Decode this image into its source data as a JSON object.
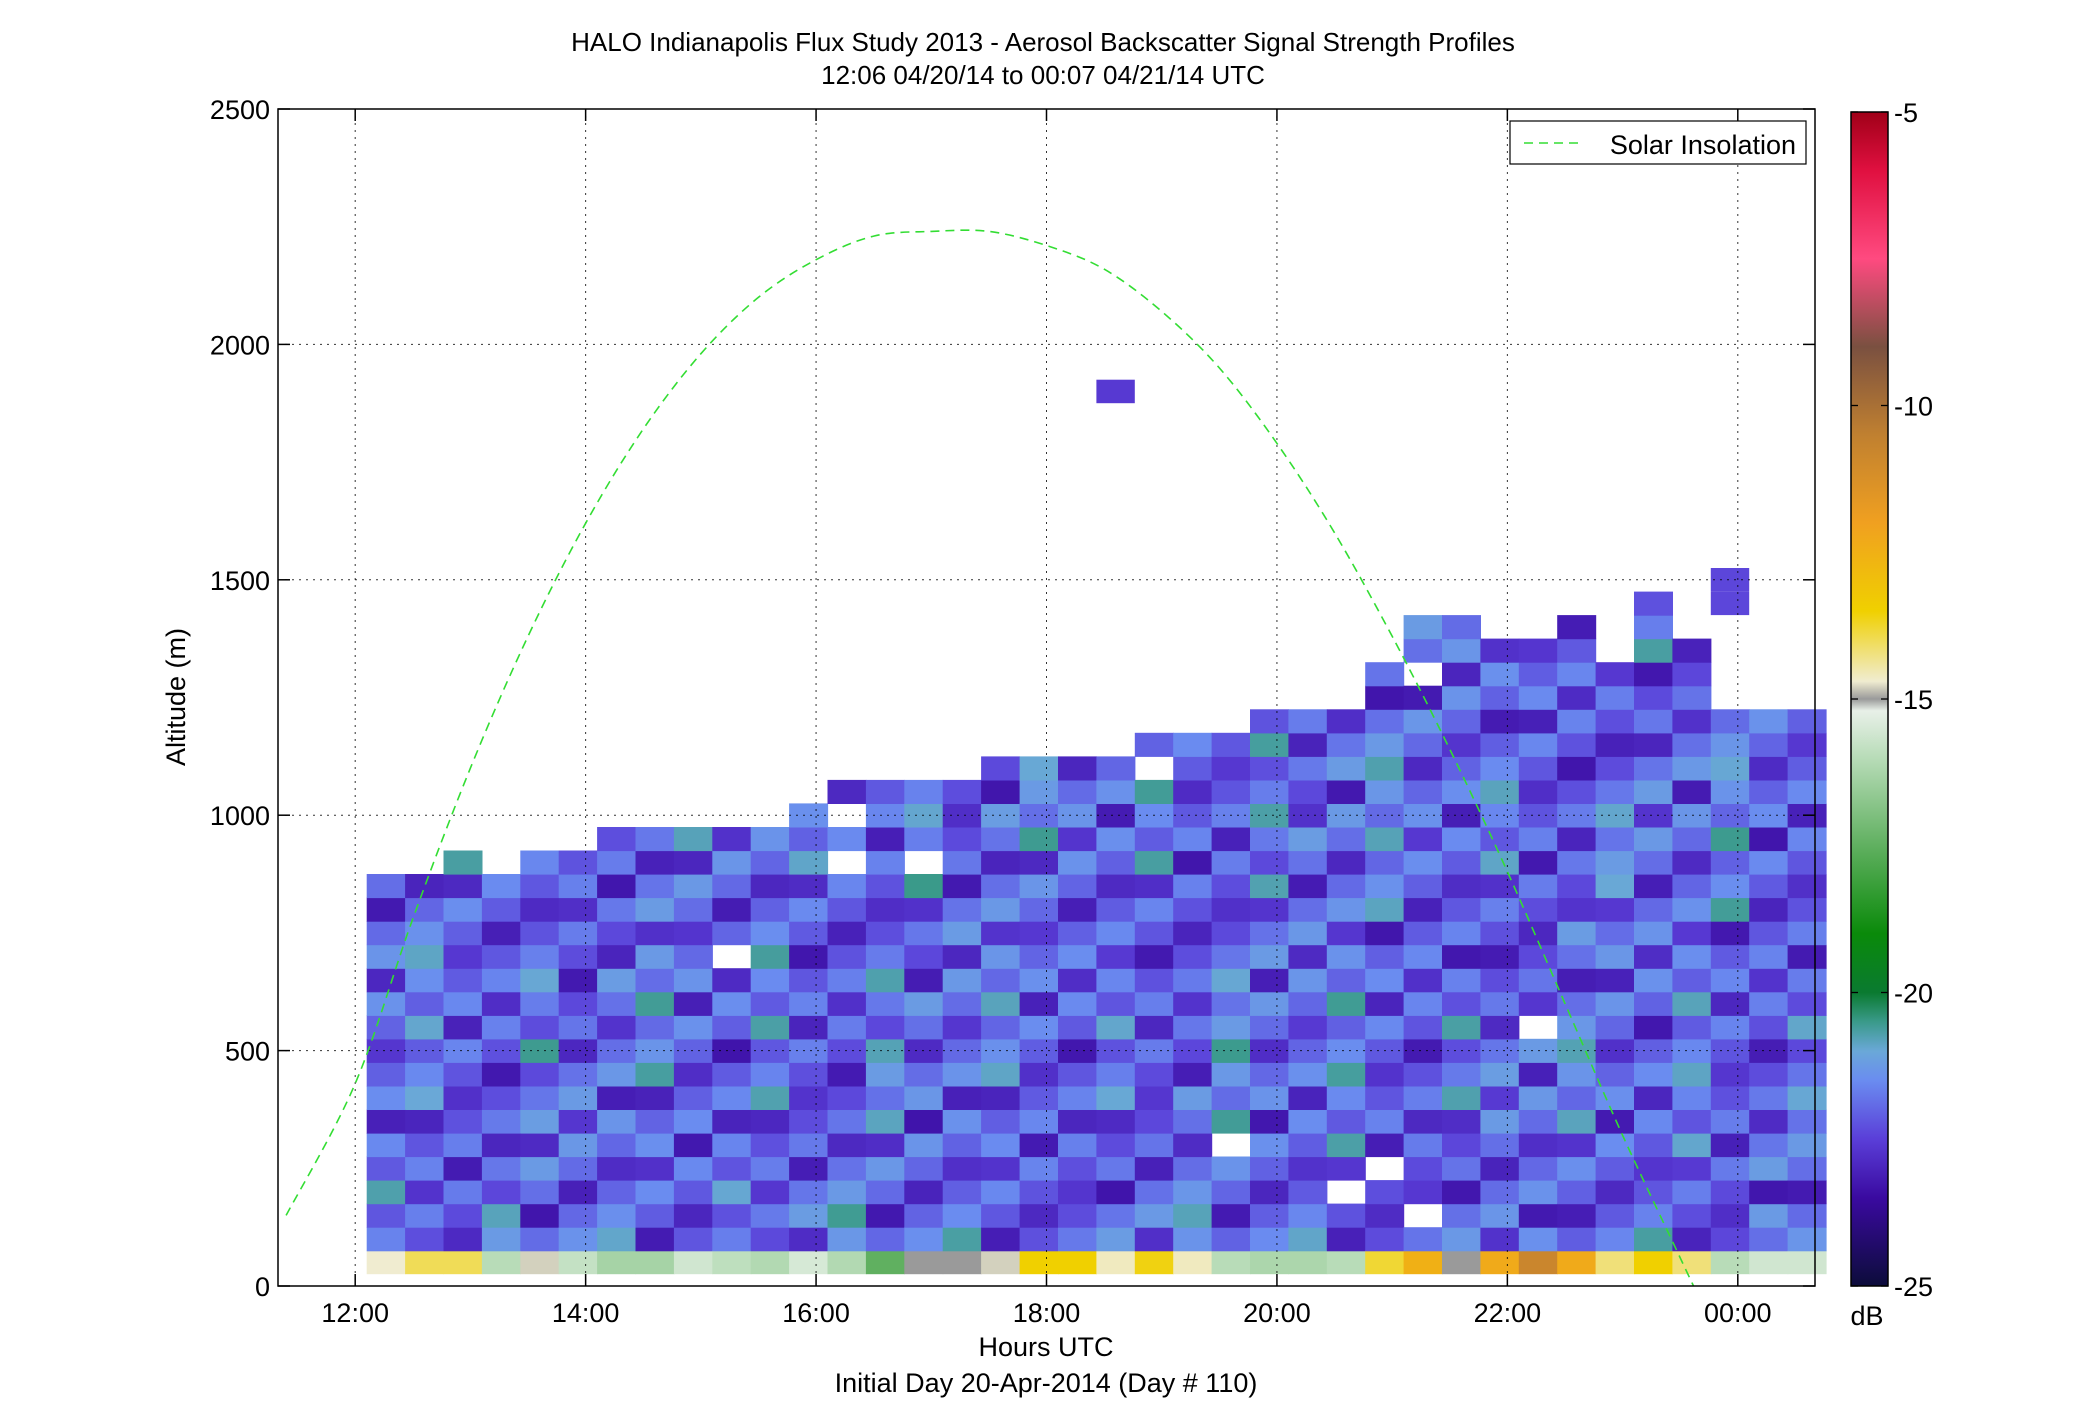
{
  "chart_data": {
    "type": "heatmap",
    "title": "HALO Indianapolis Flux Study 2013 - Aerosol Backscatter Signal Strength Profiles",
    "subtitle": "12:06 04/20/14 to 00:07 04/21/14  UTC",
    "xlabel": "Hours UTC",
    "xlabel2": "Initial Day 20-Apr-2014 (Day # 110)",
    "ylabel": "Altitude (m)",
    "x_tick_labels": [
      "12:00",
      "14:00",
      "16:00",
      "18:00",
      "20:00",
      "22:00",
      "00:00"
    ],
    "x_ticks_hours": [
      12,
      14,
      16,
      18,
      20,
      22,
      24
    ],
    "xlim_hours": [
      11.33,
      24.67
    ],
    "y_ticks": [
      0,
      500,
      1000,
      1500,
      2000,
      2500
    ],
    "ylim": [
      0,
      2500
    ],
    "grid": true,
    "legend": {
      "entries": [
        "Solar Insolation"
      ],
      "position": "top-right"
    },
    "colorbar": {
      "ticks": [
        -5,
        -10,
        -15,
        -20,
        -25
      ],
      "range": [
        -25,
        -5
      ],
      "unit": "dB",
      "stops": [
        {
          "v": -25,
          "c": "#0c0c3a"
        },
        {
          "v": -23.5,
          "c": "#3a0aa0"
        },
        {
          "v": -22.5,
          "c": "#5a3ed8"
        },
        {
          "v": -21.5,
          "c": "#6a8cf0"
        },
        {
          "v": -21,
          "c": "#6aa8d8"
        },
        {
          "v": -20.5,
          "c": "#3a9a8a"
        },
        {
          "v": -20,
          "c": "#0a7a30"
        },
        {
          "v": -19,
          "c": "#0a8a0a"
        },
        {
          "v": -17.5,
          "c": "#60b060"
        },
        {
          "v": -16,
          "c": "#b8dcb8"
        },
        {
          "v": -15.2,
          "c": "#e8f0e8"
        },
        {
          "v": -15,
          "c": "#9a9a9a"
        },
        {
          "v": -14.7,
          "c": "#f0ecd0"
        },
        {
          "v": -13.5,
          "c": "#f0d000"
        },
        {
          "v": -12,
          "c": "#f0a020"
        },
        {
          "v": -10.5,
          "c": "#c08030"
        },
        {
          "v": -9,
          "c": "#7a5040"
        },
        {
          "v": -7.5,
          "c": "#ff4a80"
        },
        {
          "v": -6,
          "c": "#e01040"
        },
        {
          "v": -5,
          "c": "#a00018"
        }
      ]
    },
    "grid_meta": {
      "x_start_hour": 12.1,
      "col_width_hours": 0.3333,
      "row0_bottom_m": 75,
      "row_height_m": 50
    },
    "columns": [
      {
        "top": 850,
        "surface": -14.7,
        "seed": 1
      },
      {
        "top": 850,
        "surface": -14.0,
        "seed": 2
      },
      {
        "top": 900,
        "surface": -14.0,
        "seed": 3
      },
      {
        "top": 900,
        "surface": -16.0,
        "seed": 4
      },
      {
        "top": 900,
        "surface": -14.8,
        "seed": 5
      },
      {
        "top": 900,
        "surface": -15.8,
        "seed": 6
      },
      {
        "top": 950,
        "surface": -16.3,
        "seed": 7
      },
      {
        "top": 950,
        "surface": -16.3,
        "seed": 8
      },
      {
        "top": 950,
        "surface": -15.6,
        "seed": 9
      },
      {
        "top": 950,
        "surface": -15.9,
        "seed": 10
      },
      {
        "top": 950,
        "surface": -16.1,
        "seed": 11
      },
      {
        "top": 1000,
        "surface": -15.5,
        "seed": 12
      },
      {
        "top": 1050,
        "surface": -16.1,
        "seed": 13
      },
      {
        "top": 1050,
        "surface": -17.5,
        "seed": 14
      },
      {
        "top": 1050,
        "surface": -15.0,
        "seed": 15
      },
      {
        "top": 1050,
        "surface": -15.0,
        "seed": 16
      },
      {
        "top": 1100,
        "surface": -14.8,
        "seed": 17
      },
      {
        "top": 1100,
        "surface": -13.5,
        "seed": 18
      },
      {
        "top": 1100,
        "surface": -13.5,
        "seed": 19
      },
      {
        "top": 1100,
        "surface": -14.6,
        "seed": 20
      },
      {
        "top": 1150,
        "surface": -13.6,
        "seed": 21
      },
      {
        "top": 1150,
        "surface": -14.6,
        "seed": 22
      },
      {
        "top": 1150,
        "surface": -16.0,
        "seed": 23
      },
      {
        "top": 1200,
        "surface": -16.2,
        "seed": 24
      },
      {
        "top": 1200,
        "surface": -16.2,
        "seed": 25
      },
      {
        "top": 1200,
        "surface": -16.0,
        "seed": 26
      },
      {
        "top": 1300,
        "surface": -13.8,
        "seed": 27
      },
      {
        "top": 1400,
        "surface": -12.5,
        "seed": 28
      },
      {
        "top": 1400,
        "surface": -15.0,
        "seed": 29
      },
      {
        "top": 1350,
        "surface": -12.3,
        "seed": 30
      },
      {
        "top": 1350,
        "surface": -10.8,
        "seed": 31
      },
      {
        "top": 1400,
        "surface": -12.3,
        "seed": 32
      },
      {
        "top": 1300,
        "surface": -14.2,
        "seed": 33
      },
      {
        "top": 1450,
        "surface": -13.5,
        "seed": 34
      },
      {
        "top": 1350,
        "surface": -14.2,
        "seed": 35
      },
      {
        "top": 1200,
        "surface": -16.0,
        "seed": 36
      },
      {
        "top": 1200,
        "surface": -15.6,
        "seed": 37
      },
      {
        "top": 1200,
        "surface": -15.6,
        "seed": 38
      }
    ],
    "gaps": [
      [
        3,
        16
      ],
      [
        3,
        24
      ],
      [
        9,
        12
      ],
      [
        12,
        16
      ],
      [
        12,
        18
      ],
      [
        14,
        16
      ],
      [
        16,
        21
      ],
      [
        16,
        22
      ],
      [
        20,
        20
      ],
      [
        21,
        22
      ],
      [
        22,
        4
      ],
      [
        25,
        2
      ],
      [
        27,
        1
      ],
      [
        30,
        9
      ],
      [
        30,
        26
      ],
      [
        26,
        3
      ],
      [
        27,
        24
      ],
      [
        25,
        23
      ]
    ],
    "extra_cells": [
      {
        "col": 19,
        "row": 36,
        "value": -22.6
      },
      {
        "col": 35,
        "row": 28,
        "value": -22.4
      },
      {
        "col": 35,
        "row": 27,
        "value": -22.4
      }
    ],
    "solar_insolation": {
      "line_style": "dashed",
      "color": "#33dd33",
      "hours": [
        11.4,
        12.0,
        12.5,
        13.0,
        13.5,
        14.0,
        14.5,
        15.0,
        15.5,
        16.0,
        16.5,
        17.0,
        17.5,
        18.0,
        18.5,
        19.0,
        19.5,
        20.0,
        20.5,
        21.0,
        21.5,
        22.0,
        22.5,
        23.0,
        23.5,
        24.0,
        24.4
      ],
      "altitude_m": [
        150,
        430,
        780,
        1100,
        1380,
        1620,
        1820,
        1980,
        2100,
        2180,
        2230,
        2240,
        2240,
        2210,
        2160,
        2070,
        1950,
        1790,
        1600,
        1380,
        1140,
        880,
        600,
        320,
        60,
        -200,
        -420
      ]
    }
  }
}
